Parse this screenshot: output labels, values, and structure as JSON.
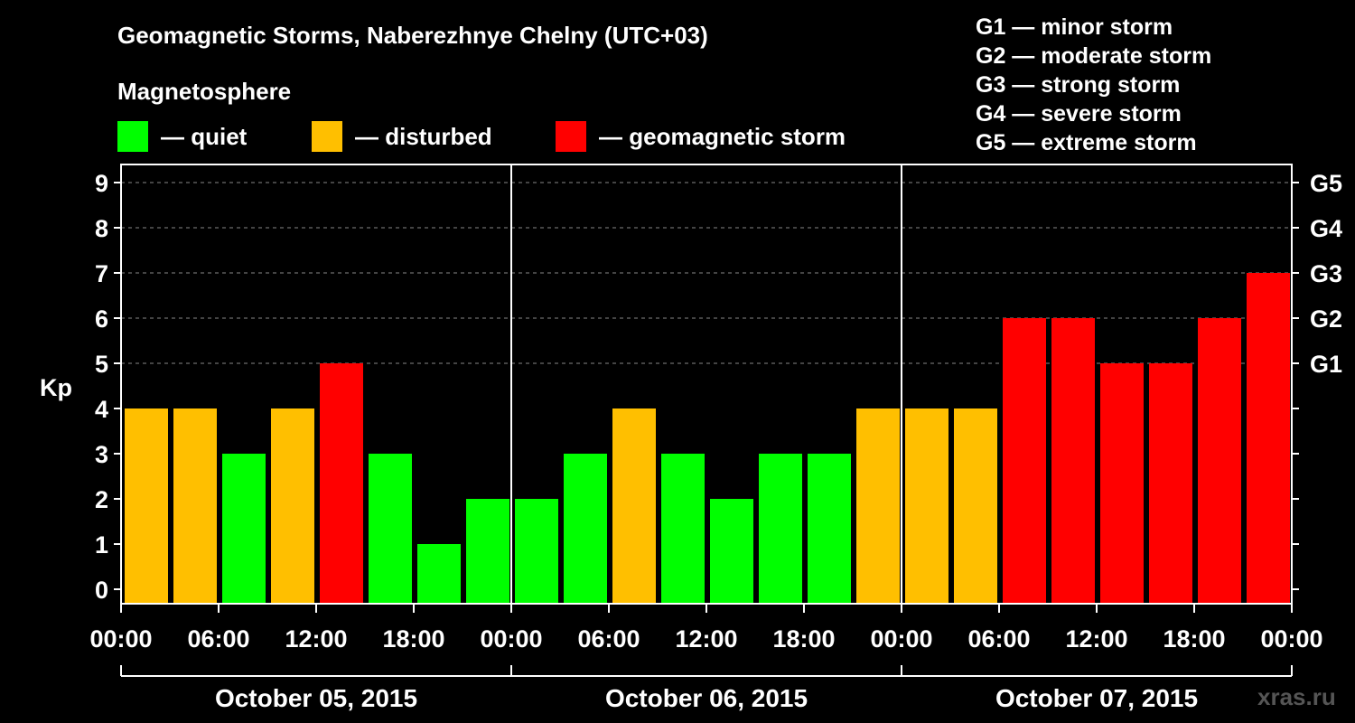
{
  "title": "Geomagnetic Storms, Naberezhnye Chelny (UTC+03)",
  "subtitle": "Magnetosphere",
  "legend": [
    {
      "label": "— quiet",
      "color": "#00ff00"
    },
    {
      "label": "— disturbed",
      "color": "#ffbf00"
    },
    {
      "label": "— geomagnetic storm",
      "color": "#ff0000"
    }
  ],
  "g_legend": [
    "G1 — minor storm",
    "G2 — moderate storm",
    "G3 — strong storm",
    "G4 — severe storm",
    "G5 — extreme storm"
  ],
  "watermark": "xras.ru",
  "chart_data": {
    "type": "bar",
    "ylabel": "Kp",
    "ylim": [
      0,
      9
    ],
    "yticks": [
      0,
      1,
      2,
      3,
      4,
      5,
      6,
      7,
      8,
      9
    ],
    "right_axis_labels": [
      {
        "kp": 5,
        "label": "G1"
      },
      {
        "kp": 6,
        "label": "G2"
      },
      {
        "kp": 7,
        "label": "G3"
      },
      {
        "kp": 8,
        "label": "G4"
      },
      {
        "kp": 9,
        "label": "G5"
      }
    ],
    "grid": "dashed horizontal at Kp 5-9",
    "colors": {
      "quiet": "#00ff00",
      "disturbed": "#ffbf00",
      "storm": "#ff0000"
    },
    "xtick_labels": [
      "00:00",
      "06:00",
      "12:00",
      "18:00",
      "00:00",
      "06:00",
      "12:00",
      "18:00",
      "00:00",
      "06:00",
      "12:00",
      "18:00",
      "00:00"
    ],
    "days": [
      "October 05, 2015",
      "October 06, 2015",
      "October 07, 2015"
    ],
    "series": [
      {
        "day": "October 05, 2015",
        "values": [
          4,
          4,
          3,
          4,
          5,
          3,
          1,
          2
        ]
      },
      {
        "day": "October 06, 2015",
        "values": [
          2,
          3,
          4,
          3,
          2,
          3,
          3,
          4
        ]
      },
      {
        "day": "October 07, 2015",
        "values": [
          4,
          4,
          6,
          6,
          5,
          5,
          6,
          7
        ]
      }
    ]
  }
}
